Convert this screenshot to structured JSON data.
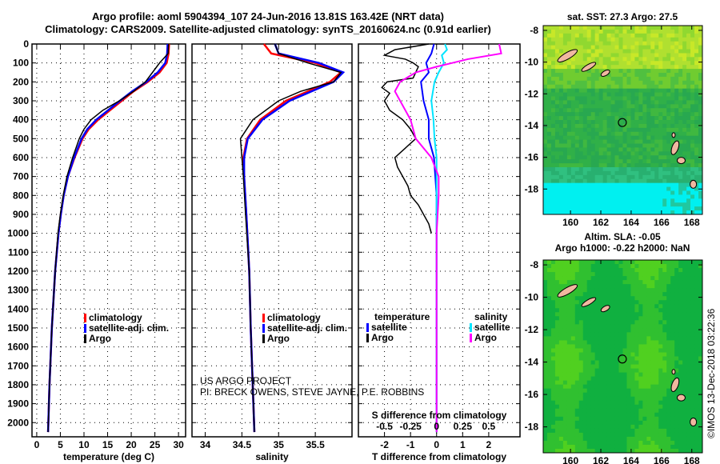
{
  "title_line1": "Argo profile: aoml 5904394_107 24-Jun-2016 13.81S 163.42E (NRT data)",
  "title_line2": "Climatology: CARS2009. Satellite-adjusted climatology: synTS_20160624.nc (0.91d earlier)",
  "credit_line1": "US ARGO PROJECT",
  "credit_line2": "PI: BRECK OWENS, STEVE JAYNE, P.E. ROBBINS",
  "timestamp": "©IMOS 13-Dec-2018 03:22:36",
  "colors": {
    "climatology": "#ff0000",
    "satellite": "#0000ff",
    "argo": "#000000",
    "sal_satellite": "#00e5ff",
    "sal_argo": "#ff00ff",
    "land": "#f0b8a0"
  },
  "chart_data": [
    {
      "type": "line",
      "name": "temperature",
      "xlabel": "temperature (deg C)",
      "xlim": [
        -1,
        31.5
      ],
      "xticks": [
        0,
        5,
        10,
        15,
        20,
        25,
        30
      ],
      "ylim": [
        2075,
        0
      ],
      "yticks": [
        0,
        100,
        200,
        300,
        400,
        500,
        600,
        700,
        800,
        900,
        1000,
        1100,
        1200,
        1300,
        1400,
        1500,
        1600,
        1700,
        1800,
        1900,
        2000
      ],
      "legend": [
        "climatology",
        "satellite-adj. clim.",
        "Argo"
      ],
      "depth": [
        0,
        50,
        100,
        150,
        200,
        250,
        300,
        350,
        400,
        450,
        500,
        600,
        700,
        800,
        900,
        1000,
        1200,
        1500,
        1800,
        2050
      ],
      "series": [
        {
          "name": "climatology",
          "values": [
            28,
            27.9,
            27.5,
            26,
            23.5,
            20.5,
            18,
            15.5,
            13,
            11,
            9.7,
            8,
            6.6,
            5.7,
            5.1,
            4.6,
            3.9,
            3.2,
            2.7,
            2.4
          ]
        },
        {
          "name": "satellite-adj. clim.",
          "values": [
            27.7,
            27.6,
            27.2,
            25.6,
            23.2,
            20.2,
            17.6,
            15.1,
            12.6,
            10.7,
            9.5,
            7.9,
            6.6,
            5.7,
            5.1,
            4.6,
            3.9,
            3.2,
            2.7,
            2.4
          ]
        },
        {
          "name": "Argo",
          "values": [
            27.9,
            27.8,
            26.0,
            24.5,
            23,
            20.5,
            17.5,
            14,
            11.5,
            10,
            9,
            7.6,
            6.4,
            5.6,
            5.0,
            4.5,
            3.9,
            3.2,
            2.7,
            2.4
          ]
        }
      ]
    },
    {
      "type": "line",
      "name": "salinity",
      "xlabel": "salinity",
      "xlim": [
        33.82,
        36.0
      ],
      "xticks": [
        34,
        34.5,
        35,
        35.5
      ],
      "ylim": [
        2075,
        0
      ],
      "legend": [
        "climatology",
        "satellite-adj. clim.",
        "Argo"
      ],
      "depth": [
        0,
        50,
        100,
        150,
        200,
        250,
        300,
        400,
        500,
        600,
        700,
        900,
        1200,
        1500,
        2050
      ],
      "series": [
        {
          "name": "climatology",
          "values": [
            34.8,
            34.9,
            35.5,
            35.85,
            35.7,
            35.4,
            35.1,
            34.75,
            34.57,
            34.52,
            34.53,
            34.56,
            34.6,
            34.62,
            34.67
          ]
        },
        {
          "name": "satellite-adj. clim.",
          "values": [
            34.95,
            35.0,
            35.55,
            35.88,
            35.75,
            35.45,
            35.15,
            34.78,
            34.58,
            34.53,
            34.53,
            34.56,
            34.6,
            34.62,
            34.67
          ]
        },
        {
          "name": "Argo",
          "values": [
            34.95,
            35.0,
            35.4,
            35.85,
            35.75,
            35.3,
            35.0,
            34.65,
            34.48,
            34.5,
            34.52,
            34.55,
            34.6,
            34.62,
            34.67
          ]
        }
      ]
    },
    {
      "type": "line",
      "name": "difference",
      "xlabel": "T difference from climatology",
      "xlim": [
        -3,
        3.2
      ],
      "xticks": [
        -2,
        -1,
        0,
        1,
        2
      ],
      "x2label": "S difference from climatology",
      "x2ticks": [
        "-0.5",
        "-0.25",
        "0",
        "0.25",
        "0.5"
      ],
      "ylim": [
        2075,
        0
      ],
      "legend_left_title": "temperature",
      "legend_right_title": "salinity",
      "legend_left": [
        "satellite",
        "Argo"
      ],
      "legend_right": [
        "satellite",
        "Argo"
      ],
      "t_argo": {
        "depth": [
          0,
          30,
          60,
          80,
          100,
          120,
          150,
          180,
          200,
          230,
          260,
          300,
          350,
          400,
          450,
          500,
          550,
          600,
          650,
          700,
          750,
          800,
          850,
          900,
          950,
          1000
        ],
        "values": [
          -0.3,
          -1.6,
          -2.0,
          -1.2,
          -0.9,
          -0.7,
          -0.8,
          -0.9,
          -1.9,
          -2.1,
          -1.8,
          -2.0,
          -1.8,
          -1.3,
          -1.0,
          -0.8,
          -1.2,
          -1.6,
          -1.5,
          -1.3,
          -1.1,
          -1.0,
          -0.7,
          -0.5,
          -0.3,
          -0.2
        ]
      },
      "t_sat": {
        "depth": [
          0,
          50,
          100,
          150,
          200,
          300,
          400,
          500,
          600,
          800,
          1000,
          2050
        ],
        "values": [
          -0.1,
          -0.2,
          -0.4,
          -0.3,
          -0.6,
          -0.5,
          -0.3,
          -0.3,
          -0.1,
          0,
          0,
          0
        ]
      },
      "s_argo": {
        "depth": [
          0,
          50,
          80,
          100,
          120,
          150,
          200,
          250,
          300,
          400,
          500,
          600,
          700,
          800,
          900,
          1000,
          2050
        ],
        "values": [
          0.6,
          0.62,
          0.3,
          0.15,
          0.0,
          -0.2,
          -0.35,
          -0.4,
          -0.35,
          -0.25,
          -0.2,
          -0.05,
          0.02,
          0.02,
          0.01,
          0,
          0
        ]
      },
      "s_sat": {
        "depth": [
          0,
          30,
          60,
          100,
          150,
          200,
          300,
          400,
          500,
          600,
          800,
          1000,
          2050
        ],
        "values": [
          0.08,
          0.1,
          0.05,
          0.07,
          0.02,
          -0.02,
          -0.05,
          -0.03,
          -0.02,
          0,
          0,
          0,
          0
        ]
      }
    },
    {
      "type": "heatmap",
      "name": "sst-map",
      "title": "sat. SST: 27.3 Argo: 27.5",
      "xticks": [
        160,
        162,
        164,
        166,
        168
      ],
      "yticks": [
        -8,
        -10,
        -12,
        -14,
        -16,
        -18
      ],
      "xlim": [
        158.2,
        168.7
      ],
      "ylim": [
        -19.6,
        -7.7
      ],
      "profile": {
        "lon": 163.42,
        "lat": -13.81
      }
    },
    {
      "type": "heatmap",
      "name": "sla-map",
      "title": "Altim. SLA: -0.05",
      "subtitle": "Argo h1000: -0.22 h2000: NaN",
      "xticks": [
        160,
        162,
        164,
        166,
        168
      ],
      "yticks": [
        -8,
        -10,
        -12,
        -14,
        -16,
        -18
      ],
      "xlim": [
        158.2,
        168.7
      ],
      "ylim": [
        -19.6,
        -7.7
      ],
      "profile": {
        "lon": 163.42,
        "lat": -13.81
      }
    }
  ]
}
